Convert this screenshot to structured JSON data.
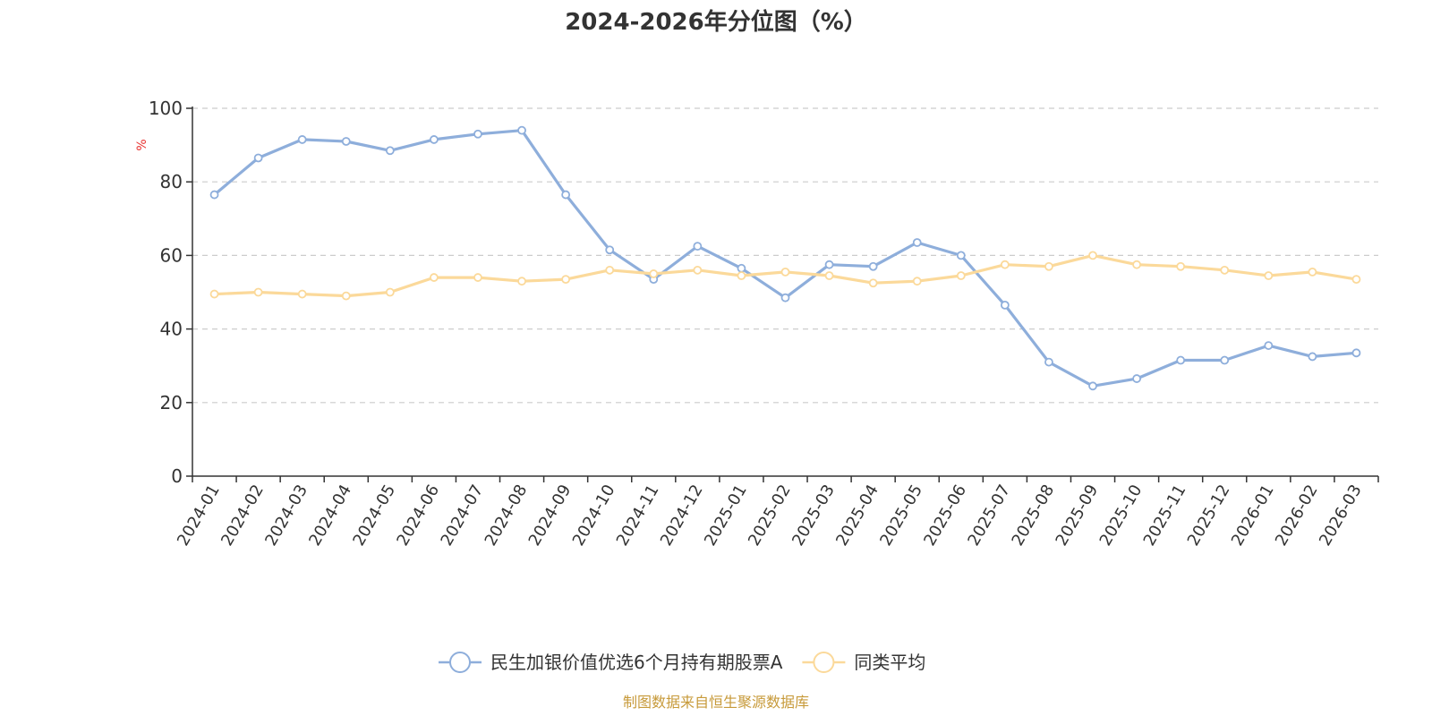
{
  "chart_data": {
    "type": "line",
    "title": "2024-2026年分位图（%）",
    "ylabel": "%",
    "xlabel": "",
    "ylim": [
      0,
      100
    ],
    "yticks": [
      0,
      20,
      40,
      60,
      80,
      100
    ],
    "grid": true,
    "categories": [
      "2024-01",
      "2024-02",
      "2024-03",
      "2024-04",
      "2024-05",
      "2024-06",
      "2024-07",
      "2024-08",
      "2024-09",
      "2024-10",
      "2024-11",
      "2024-12",
      "2025-01",
      "2025-02",
      "2025-03",
      "2025-04",
      "2025-05",
      "2025-06",
      "2025-07",
      "2025-08",
      "2025-09",
      "2025-10",
      "2025-11",
      "2025-12",
      "2026-01",
      "2026-02",
      "2026-03"
    ],
    "series": [
      {
        "name": "民生加银价值优选6个月持有期股票A",
        "color": "#8eaedb",
        "values": [
          76.5,
          86.5,
          91.5,
          91,
          88.5,
          91.5,
          93,
          94,
          76.5,
          61.5,
          53.5,
          62.5,
          56.5,
          48.5,
          57.5,
          57,
          63.5,
          60,
          46.5,
          31,
          24.5,
          26.5,
          31.5,
          31.5,
          35.5,
          32.5,
          33.5
        ]
      },
      {
        "name": "同类平均",
        "color": "#fbd99a",
        "values": [
          49.5,
          50,
          49.5,
          49,
          50,
          54,
          54,
          53,
          53.5,
          56,
          55,
          56,
          54.5,
          55.5,
          54.5,
          52.5,
          53,
          54.5,
          57.5,
          57,
          60,
          57.5,
          57,
          56,
          54.5,
          55.5,
          53.5
        ]
      }
    ],
    "legend_position": "bottom-center",
    "source": "制图数据来自恒生聚源数据库",
    "source_color": "#c79a3a",
    "unit_color": "#e8312f",
    "axis_color": "#333333",
    "grid_color": "#cccccc"
  }
}
